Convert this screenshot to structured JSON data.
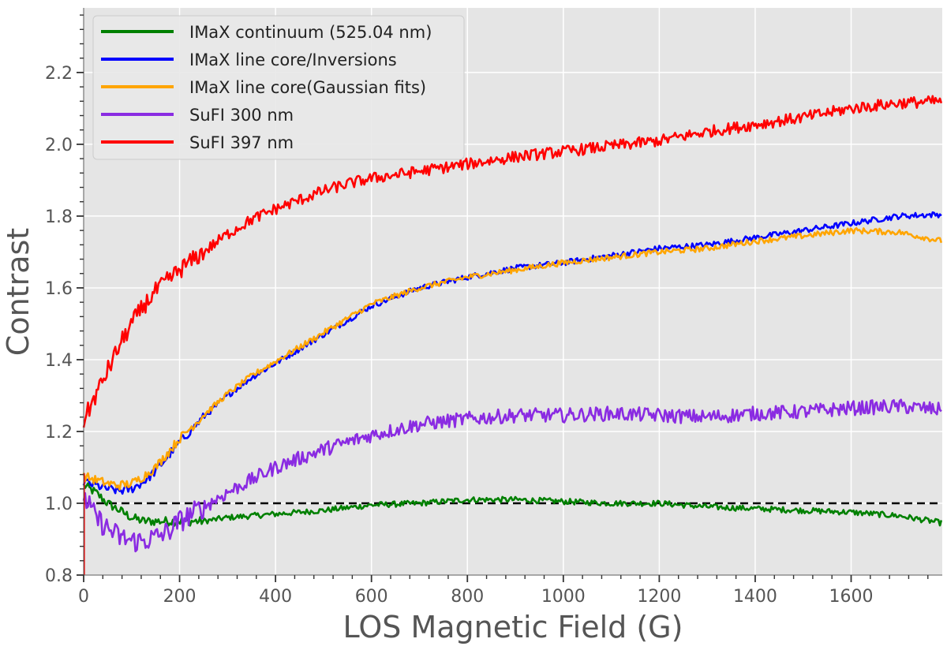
{
  "chart_data": {
    "type": "line",
    "title": "",
    "xlabel": "LOS Magnetic Field (G)",
    "ylabel": "Contrast",
    "xlim": [
      0,
      1790
    ],
    "ylim": [
      0.8,
      2.38
    ],
    "xticks": [
      0,
      200,
      400,
      600,
      800,
      1000,
      1200,
      1400,
      1600
    ],
    "xtick_labels": [
      "0",
      "200",
      "400",
      "600",
      "800",
      "1000",
      "1200",
      "1400",
      "1600"
    ],
    "yticks": [
      0.8,
      1.0,
      1.2,
      1.4,
      1.6,
      1.8,
      2.0,
      2.2
    ],
    "ytick_labels": [
      "0.8",
      "1.0",
      "1.2",
      "1.4",
      "1.6",
      "1.8",
      "2.0",
      "2.2"
    ],
    "grid": true,
    "background": "#e5e5e5",
    "legend_position": "top-left",
    "reference_line": {
      "y": 1.0,
      "style": "dashed",
      "color": "#000000"
    },
    "series": [
      {
        "name": "IMaX continuum (525.04 nm)",
        "color": "#008000",
        "x": [
          0,
          25,
          50,
          75,
          100,
          125,
          150,
          175,
          200,
          250,
          300,
          400,
          500,
          600,
          700,
          800,
          900,
          1000,
          1100,
          1200,
          1300,
          1400,
          1500,
          1600,
          1700,
          1790
        ],
        "y": [
          1.05,
          1.03,
          1.0,
          0.98,
          0.96,
          0.95,
          0.95,
          0.95,
          0.95,
          0.95,
          0.96,
          0.97,
          0.98,
          0.995,
          1.0,
          1.01,
          1.01,
          1.005,
          1.0,
          1.0,
          0.99,
          0.985,
          0.98,
          0.975,
          0.965,
          0.945
        ],
        "noise": 0.008
      },
      {
        "name": "IMaX line core/Inversions",
        "color": "#0000ff",
        "x": [
          0,
          25,
          50,
          75,
          100,
          125,
          150,
          175,
          200,
          250,
          300,
          350,
          400,
          450,
          500,
          550,
          600,
          700,
          800,
          900,
          1000,
          1100,
          1200,
          1300,
          1400,
          1500,
          1600,
          1700,
          1790
        ],
        "y": [
          1.06,
          1.05,
          1.04,
          1.035,
          1.04,
          1.06,
          1.09,
          1.13,
          1.17,
          1.24,
          1.3,
          1.35,
          1.39,
          1.43,
          1.47,
          1.51,
          1.55,
          1.6,
          1.63,
          1.655,
          1.67,
          1.69,
          1.71,
          1.72,
          1.74,
          1.76,
          1.78,
          1.8,
          1.805
        ],
        "noise": 0.008
      },
      {
        "name": "IMaX line core(Gaussian fits)",
        "color": "#ffa500",
        "x": [
          0,
          25,
          50,
          75,
          100,
          125,
          150,
          175,
          200,
          250,
          300,
          350,
          400,
          450,
          500,
          550,
          600,
          700,
          800,
          900,
          1000,
          1100,
          1200,
          1300,
          1400,
          1500,
          1600,
          1700,
          1790
        ],
        "y": [
          1.075,
          1.065,
          1.055,
          1.05,
          1.055,
          1.075,
          1.1,
          1.14,
          1.18,
          1.245,
          1.305,
          1.355,
          1.395,
          1.435,
          1.475,
          1.515,
          1.555,
          1.6,
          1.63,
          1.65,
          1.67,
          1.685,
          1.7,
          1.71,
          1.73,
          1.745,
          1.76,
          1.755,
          1.73
        ],
        "noise": 0.008
      },
      {
        "name": "SuFI 300 nm",
        "color": "#8a2be2",
        "x": [
          0,
          25,
          50,
          75,
          100,
          125,
          150,
          175,
          200,
          250,
          300,
          400,
          500,
          600,
          700,
          800,
          900,
          1000,
          1100,
          1200,
          1300,
          1400,
          1500,
          1600,
          1700,
          1790
        ],
        "y": [
          1.02,
          0.96,
          0.93,
          0.905,
          0.895,
          0.895,
          0.905,
          0.92,
          0.95,
          0.99,
          1.03,
          1.1,
          1.15,
          1.19,
          1.22,
          1.235,
          1.245,
          1.245,
          1.25,
          1.245,
          1.24,
          1.25,
          1.255,
          1.265,
          1.27,
          1.26
        ],
        "noise": 0.02
      },
      {
        "name": "SuFI 397 nm",
        "color": "#ff0000",
        "x": [
          0,
          25,
          50,
          75,
          100,
          125,
          150,
          175,
          200,
          250,
          300,
          350,
          400,
          450,
          500,
          550,
          600,
          700,
          800,
          900,
          1000,
          1100,
          1200,
          1300,
          1400,
          1500,
          1600,
          1700,
          1790
        ],
        "y": [
          1.23,
          1.3,
          1.37,
          1.44,
          1.5,
          1.55,
          1.59,
          1.62,
          1.65,
          1.7,
          1.75,
          1.79,
          1.82,
          1.845,
          1.87,
          1.89,
          1.905,
          1.925,
          1.945,
          1.965,
          1.98,
          1.995,
          2.01,
          2.035,
          2.055,
          2.075,
          2.1,
          2.115,
          2.12
        ],
        "noise": 0.016
      }
    ]
  }
}
